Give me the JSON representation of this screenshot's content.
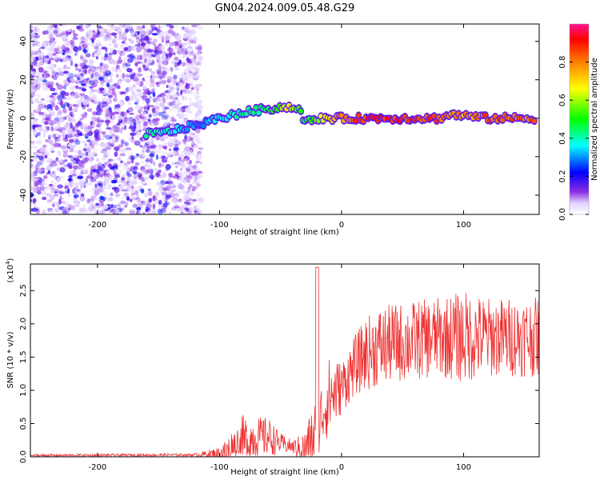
{
  "title": "GN04.2024.009.05.48.G29",
  "charts": [
    {
      "type": "heatmap",
      "xlabel": "Height of straight line (km)",
      "ylabel": "Frequency (Hz)",
      "xlim": [
        -255,
        162
      ],
      "ylim": [
        -50,
        49
      ],
      "xticks": [
        -200,
        -100,
        0,
        100
      ],
      "xtick_labels": [
        "-200",
        "-100",
        "0",
        "100"
      ],
      "yticks": [
        40,
        20,
        0,
        -20,
        -40
      ],
      "ytick_labels": [
        "40",
        "20",
        "0",
        "-20",
        "-40"
      ],
      "colorbar": {
        "label": "Normalized spectral amplitude",
        "range": [
          0,
          1
        ],
        "ticks": [
          0.0,
          0.2,
          0.4,
          0.6,
          0.8
        ],
        "tick_labels": [
          "0.0",
          "0.2",
          "0.4",
          "0.6",
          "0.8"
        ]
      },
      "ridge": [
        {
          "x": -160,
          "y": -8,
          "a": 0.45
        },
        {
          "x": -150,
          "y": -8,
          "a": 0.45
        },
        {
          "x": -115,
          "y": -3,
          "a": 0.3
        },
        {
          "x": -100,
          "y": 0,
          "a": 0.4
        },
        {
          "x": -80,
          "y": 3,
          "a": 0.45
        },
        {
          "x": -60,
          "y": 5,
          "a": 0.5
        },
        {
          "x": -45,
          "y": 6,
          "a": 0.7
        },
        {
          "x": -35,
          "y": 5,
          "a": 0.6
        },
        {
          "x": -30,
          "y": -2,
          "a": 0.5
        },
        {
          "x": -15,
          "y": 0,
          "a": 0.7
        },
        {
          "x": 0,
          "y": 0,
          "a": 0.85
        },
        {
          "x": 20,
          "y": 0,
          "a": 0.95
        },
        {
          "x": 50,
          "y": 0,
          "a": 0.95
        },
        {
          "x": 80,
          "y": 0,
          "a": 0.9
        },
        {
          "x": 90,
          "y": 2,
          "a": 0.8
        },
        {
          "x": 120,
          "y": 0,
          "a": 0.9
        },
        {
          "x": 160,
          "y": 0,
          "a": 0.85
        }
      ]
    },
    {
      "type": "line",
      "xlabel": "Height of straight line (km)",
      "ylabel": "SNR (10 * v/v)",
      "ylabel_exp": "(x10",
      "ylabel_exp_power": "4",
      "ylabel_exp_close": ")",
      "xlim": [
        -255,
        162
      ],
      "ylim": [
        0,
        2.9
      ],
      "xticks": [
        -200,
        -100,
        0,
        100
      ],
      "xtick_labels": [
        "-200",
        "-100",
        "0",
        "100"
      ],
      "yticks": [
        0.0,
        0.5,
        1.0,
        1.5,
        2.0,
        2.5
      ],
      "ytick_labels": [
        "0.0",
        "0.5",
        "1.0",
        "1.5",
        "2.0",
        "2.5"
      ],
      "color": "#ee3333",
      "envelope": {
        "x": [
          -255,
          -120,
          -100,
          -90,
          -80,
          -70,
          -60,
          -50,
          -40,
          -30,
          -20,
          -15,
          -10,
          0,
          10,
          20,
          30,
          40,
          60,
          80,
          100,
          120,
          140,
          162
        ],
        "base": [
          0.02,
          0.03,
          0.05,
          0.1,
          0.2,
          0.3,
          0.3,
          0.2,
          0.15,
          0.1,
          0.4,
          0.7,
          0.9,
          1.05,
          1.35,
          1.55,
          1.65,
          1.7,
          1.75,
          1.8,
          1.8,
          1.8,
          1.8,
          1.8
        ],
        "amp": [
          0.02,
          0.02,
          0.1,
          0.3,
          0.45,
          0.3,
          0.3,
          0.15,
          0.1,
          0.3,
          0.6,
          0.5,
          0.6,
          0.4,
          0.45,
          0.55,
          0.6,
          0.6,
          0.6,
          0.6,
          0.7,
          0.6,
          0.6,
          0.6
        ]
      }
    }
  ]
}
